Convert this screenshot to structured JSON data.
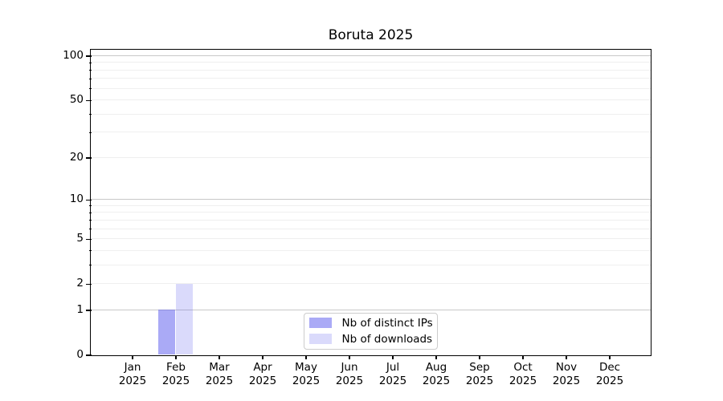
{
  "title": "Boruta 2025",
  "chart_data": {
    "type": "bar",
    "title": "Boruta 2025",
    "categories": [
      {
        "month": "Jan",
        "year": "2025"
      },
      {
        "month": "Feb",
        "year": "2025"
      },
      {
        "month": "Mar",
        "year": "2025"
      },
      {
        "month": "Apr",
        "year": "2025"
      },
      {
        "month": "May",
        "year": "2025"
      },
      {
        "month": "Jun",
        "year": "2025"
      },
      {
        "month": "Jul",
        "year": "2025"
      },
      {
        "month": "Aug",
        "year": "2025"
      },
      {
        "month": "Sep",
        "year": "2025"
      },
      {
        "month": "Oct",
        "year": "2025"
      },
      {
        "month": "Nov",
        "year": "2025"
      },
      {
        "month": "Dec",
        "year": "2025"
      }
    ],
    "series": [
      {
        "name": "Nb of distinct IPs",
        "color": "rgba(85,85,238,0.5)",
        "values": [
          0,
          1,
          0,
          0,
          0,
          0,
          0,
          0,
          0,
          0,
          0,
          0
        ]
      },
      {
        "name": "Nb of downloads",
        "color": "rgba(85,85,238,0.22)",
        "values": [
          0,
          2,
          0,
          0,
          0,
          0,
          0,
          0,
          0,
          0,
          0,
          0
        ]
      }
    ],
    "yscale": "log1p",
    "ylim": [
      0,
      111
    ],
    "ytick_labels": [
      0,
      1,
      2,
      5,
      10,
      20,
      50,
      100
    ],
    "y_major_gridlines": [
      1,
      10,
      100
    ],
    "y_minor_gridlines": [
      2,
      3,
      4,
      5,
      6,
      7,
      8,
      9,
      20,
      30,
      40,
      50,
      60,
      70,
      80,
      90
    ],
    "grid_color_major": "#c8c8c8",
    "grid_color_minor": "#efefef",
    "legend_position": "lower center",
    "xlabel": "",
    "ylabel": ""
  }
}
